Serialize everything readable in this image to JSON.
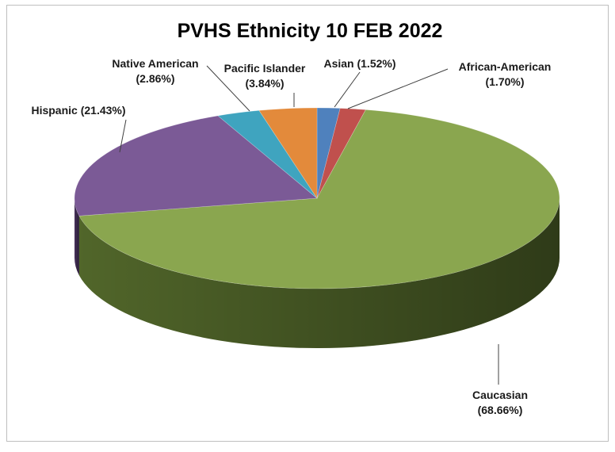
{
  "chart_data": {
    "type": "pie",
    "title": "PVHS Ethnicity 10 FEB 2022",
    "slices": [
      {
        "name": "Asian",
        "value": 1.52,
        "label": "Asian (1.52%)",
        "color": "#4f81bd",
        "side": "#2a4a72"
      },
      {
        "name": "African-American",
        "value": 1.7,
        "label": "African-American (1.70%)",
        "color": "#c0504d",
        "side": "#7a2523"
      },
      {
        "name": "Caucasian",
        "value": 68.66,
        "label": "Caucasian (68.66%)",
        "color": "#8aa64f",
        "side": "#556b2c"
      },
      {
        "name": "Hispanic",
        "value": 21.43,
        "label": "Hispanic (21.43%)",
        "color": "#7b5a96",
        "side": "#4b3560"
      },
      {
        "name": "Native American",
        "value": 2.86,
        "label": "Native American (2.86%)",
        "color": "#3fa4bf",
        "side": "#226a7c"
      },
      {
        "name": "Pacific Islander",
        "value": 3.84,
        "label": "Pacific  Islander (3.84%)",
        "color": "#e38a3b",
        "side": "#99561c"
      }
    ]
  }
}
